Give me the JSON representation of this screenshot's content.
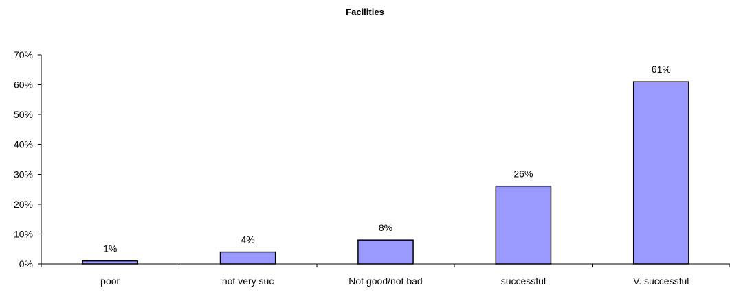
{
  "chart_data": {
    "type": "bar",
    "title": "Facilities",
    "xlabel": "",
    "ylabel": "",
    "categories": [
      "poor",
      "not very suc",
      "Not good/not bad",
      "successful",
      "V. successful"
    ],
    "values": [
      1,
      4,
      8,
      26,
      61
    ],
    "data_labels": [
      "1%",
      "4%",
      "8%",
      "26%",
      "61%"
    ],
    "ylim": [
      0,
      70
    ],
    "y_ticks": [
      0,
      10,
      20,
      30,
      40,
      50,
      60,
      70
    ],
    "y_tick_labels": [
      "0%",
      "10%",
      "20%",
      "30%",
      "40%",
      "50%",
      "60%",
      "70%"
    ],
    "grid": false,
    "legend": false,
    "bar_color": "#9999ff",
    "bar_edge_color": "#000000"
  }
}
